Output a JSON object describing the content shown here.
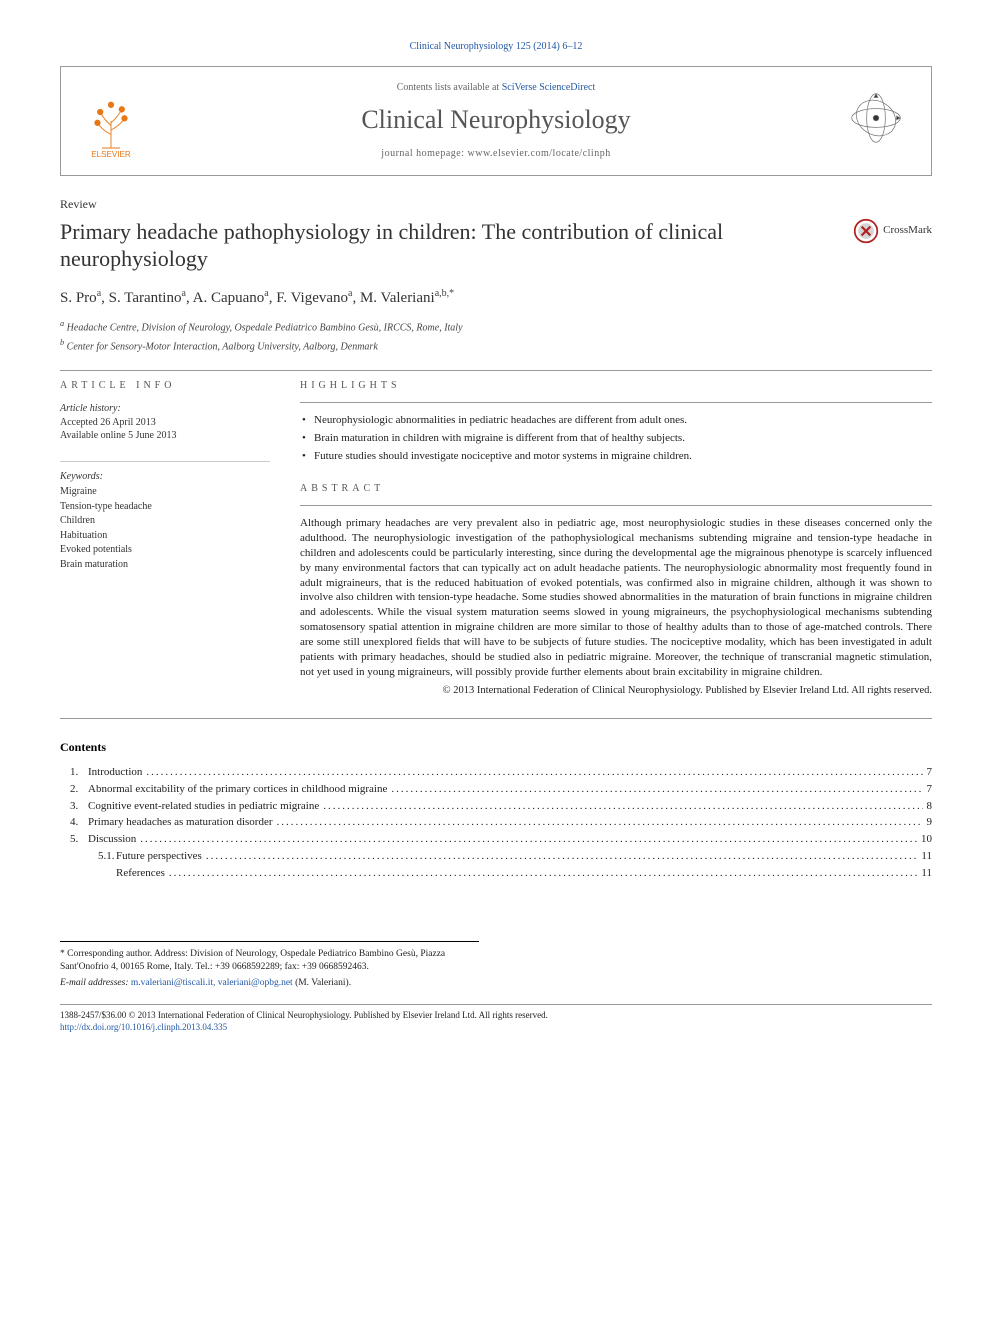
{
  "citation": "Clinical Neurophysiology 125 (2014) 6–12",
  "header": {
    "contents_available_prefix": "Contents lists available at ",
    "contents_available_link": "SciVerse ScienceDirect",
    "journal_name": "Clinical Neurophysiology",
    "homepage_prefix": "journal homepage: ",
    "homepage": "www.elsevier.com/locate/clinph",
    "publisher_label": "ELSEVIER"
  },
  "article_type": "Review",
  "title": "Primary headache pathophysiology in children: The contribution of clinical neurophysiology",
  "crossmark_label": "CrossMark",
  "authors_html": "S. Pro<sup>a</sup>, S. Tarantino<sup>a</sup>, A. Capuano<sup>a</sup>, F. Vigevano<sup>a</sup>, M. Valeriani<sup>a,b,*</sup>",
  "affiliations": [
    "a Headache Centre, Division of Neurology, Ospedale Pediatrico Bambino Gesù, IRCCS, Rome, Italy",
    "b Center for Sensory-Motor Interaction, Aalborg University, Aalborg, Denmark"
  ],
  "article_info": {
    "heading": "ARTICLE INFO",
    "history_label": "Article history:",
    "accepted": "Accepted 26 April 2013",
    "online": "Available online 5 June 2013",
    "keywords_label": "Keywords:",
    "keywords": [
      "Migraine",
      "Tension-type headache",
      "Children",
      "Habituation",
      "Evoked potentials",
      "Brain maturation"
    ]
  },
  "highlights": {
    "heading": "HIGHLIGHTS",
    "items": [
      "Neurophysiologic abnormalities in pediatric headaches are different from adult ones.",
      "Brain maturation in children with migraine is different from that of healthy subjects.",
      "Future studies should investigate nociceptive and motor systems in migraine children."
    ]
  },
  "abstract": {
    "heading": "ABSTRACT",
    "text": "Although primary headaches are very prevalent also in pediatric age, most neurophysiologic studies in these diseases concerned only the adulthood. The neurophysiologic investigation of the pathophysiological mechanisms subtending migraine and tension-type headache in children and adolescents could be particularly interesting, since during the developmental age the migrainous phenotype is scarcely influenced by many environmental factors that can typically act on adult headache patients. The neurophysiologic abnormality most frequently found in adult migraineurs, that is the reduced habituation of evoked potentials, was confirmed also in migraine children, although it was shown to involve also children with tension-type headache. Some studies showed abnormalities in the maturation of brain functions in migraine children and adolescents. While the visual system maturation seems slowed in young migraineurs, the psychophysiological mechanisms subtending somatosensory spatial attention in migraine children are more similar to those of healthy adults than to those of age-matched controls. There are some still unexplored fields that will have to be subjects of future studies. The nociceptive modality, which has been investigated in adult patients with primary headaches, should be studied also in pediatric migraine. Moreover, the technique of transcranial magnetic stimulation, not yet used in young migraineurs, will possibly provide further elements about brain excitability in migraine children.",
    "copyright": "© 2013 International Federation of Clinical Neurophysiology. Published by Elsevier Ireland Ltd. All rights reserved."
  },
  "contents": {
    "heading": "Contents",
    "items": [
      {
        "num": "1.",
        "label": "Introduction",
        "page": "7"
      },
      {
        "num": "2.",
        "label": "Abnormal excitability of the primary cortices in childhood migraine",
        "page": "7"
      },
      {
        "num": "3.",
        "label": "Cognitive event-related studies in pediatric migraine",
        "page": "8"
      },
      {
        "num": "4.",
        "label": "Primary headaches as maturation disorder",
        "page": "9"
      },
      {
        "num": "5.",
        "label": "Discussion",
        "page": "10"
      },
      {
        "num": "5.1.",
        "label": "Future perspectives",
        "page": "11",
        "sub": true
      },
      {
        "num": "",
        "label": "References",
        "page": "11",
        "sub": true
      }
    ]
  },
  "footer": {
    "corresponding": "* Corresponding author. Address: Division of Neurology, Ospedale Pediatrico Bambino Gesù, Piazza Sant'Onofrio 4, 00165 Rome, Italy. Tel.: +39 0668592289; fax: +39 0668592463.",
    "email_label": "E-mail addresses: ",
    "emails": "m.valeriani@tiscali.it, valeriani@opbg.net",
    "email_suffix": " (M. Valeriani).",
    "issn": "1388-2457/$36.00 © 2013 International Federation of Clinical Neurophysiology. Published by Elsevier Ireland Ltd. All rights reserved.",
    "doi": "http://dx.doi.org/10.1016/j.clinph.2013.04.335"
  },
  "colors": {
    "link": "#2258a6",
    "text": "#222222",
    "border": "#999999"
  }
}
